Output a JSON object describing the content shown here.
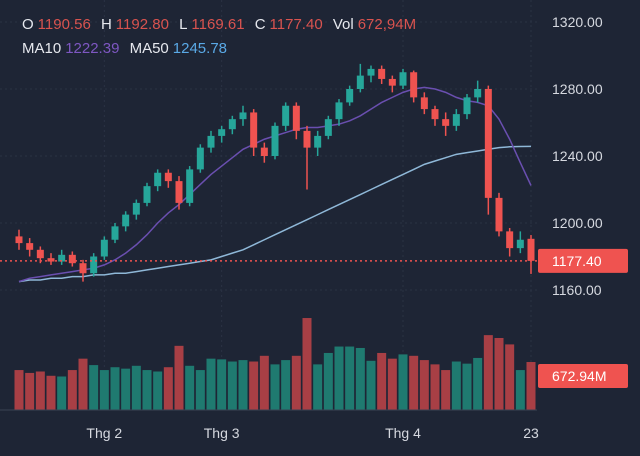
{
  "legend": {
    "o_label": "O",
    "o": "1190.56",
    "h_label": "H",
    "h": "1192.80",
    "l_label": "L",
    "l": "1169.61",
    "c_label": "C",
    "c": "1177.40",
    "vol_label": "Vol",
    "vol": "672,94M",
    "ma10_label": "MA10",
    "ma10": "1222.39",
    "ma50_label": "MA50",
    "ma50": "1245.78"
  },
  "colors": {
    "bg": "#1e2535",
    "up": "#26a69a",
    "down": "#ef5350",
    "vol_up": "#1f7a70",
    "vol_down": "#a83f45",
    "ma10": "#6a4fb0",
    "ma50": "#8fb8d8"
  },
  "chart_data": {
    "type": "candlestick",
    "ylim": [
      1150,
      1320
    ],
    "y_ticks": [
      "1320.00",
      "1280.00",
      "1240.00",
      "1200.00",
      "1160.00"
    ],
    "y_tick_values": [
      1320,
      1280,
      1240,
      1200,
      1160
    ],
    "x_ticks": [
      {
        "label": "Thg 2",
        "index": 8
      },
      {
        "label": "Thg 3",
        "index": 19
      },
      {
        "label": "Thg 4",
        "index": 36
      },
      {
        "label": "23",
        "index": 48
      }
    ],
    "last_price_label": "1177.40",
    "last_price": 1177.4,
    "last_volume_label": "672.94M",
    "last_volume": 672.94,
    "candles": [
      [
        1192,
        1196,
        1184,
        1188,
        560
      ],
      [
        1188,
        1191,
        1180,
        1184,
        520
      ],
      [
        1184,
        1186,
        1176,
        1179,
        540
      ],
      [
        1179,
        1182,
        1175,
        1177,
        480
      ],
      [
        1177,
        1184,
        1175,
        1181,
        470
      ],
      [
        1181,
        1183,
        1174,
        1176,
        560
      ],
      [
        1176,
        1178,
        1165,
        1170,
        720
      ],
      [
        1170,
        1182,
        1168,
        1180,
        630
      ],
      [
        1180,
        1192,
        1178,
        1190,
        560
      ],
      [
        1190,
        1200,
        1188,
        1198,
        600
      ],
      [
        1198,
        1207,
        1195,
        1205,
        580
      ],
      [
        1205,
        1214,
        1202,
        1212,
        620
      ],
      [
        1212,
        1224,
        1210,
        1222,
        560
      ],
      [
        1222,
        1232,
        1219,
        1230,
        540
      ],
      [
        1230,
        1232,
        1221,
        1225,
        600
      ],
      [
        1225,
        1228,
        1208,
        1212,
        900
      ],
      [
        1212,
        1234,
        1210,
        1232,
        620
      ],
      [
        1232,
        1247,
        1230,
        1245,
        560
      ],
      [
        1245,
        1255,
        1242,
        1252,
        720
      ],
      [
        1252,
        1258,
        1248,
        1256,
        710
      ],
      [
        1256,
        1264,
        1253,
        1262,
        680
      ],
      [
        1262,
        1270,
        1258,
        1266,
        700
      ],
      [
        1266,
        1268,
        1240,
        1245,
        680
      ],
      [
        1245,
        1248,
        1236,
        1240,
        760
      ],
      [
        1240,
        1260,
        1238,
        1258,
        640
      ],
      [
        1258,
        1272,
        1255,
        1270,
        700
      ],
      [
        1270,
        1272,
        1250,
        1255,
        760
      ],
      [
        1255,
        1258,
        1220,
        1245,
        1290
      ],
      [
        1245,
        1255,
        1240,
        1252,
        640
      ],
      [
        1252,
        1264,
        1250,
        1262,
        800
      ],
      [
        1262,
        1274,
        1258,
        1272,
        890
      ],
      [
        1272,
        1282,
        1270,
        1280,
        890
      ],
      [
        1280,
        1295,
        1278,
        1288,
        870
      ],
      [
        1288,
        1294,
        1284,
        1292,
        690
      ],
      [
        1292,
        1294,
        1283,
        1286,
        800
      ],
      [
        1286,
        1288,
        1278,
        1282,
        720
      ],
      [
        1282,
        1292,
        1280,
        1290,
        780
      ],
      [
        1290,
        1291,
        1272,
        1275,
        760
      ],
      [
        1275,
        1278,
        1265,
        1268,
        700
      ],
      [
        1268,
        1270,
        1258,
        1262,
        640
      ],
      [
        1262,
        1266,
        1252,
        1258,
        560
      ],
      [
        1258,
        1268,
        1255,
        1265,
        680
      ],
      [
        1265,
        1277,
        1262,
        1275,
        650
      ],
      [
        1275,
        1285,
        1272,
        1280,
        730
      ],
      [
        1280,
        1282,
        1205,
        1215,
        1050
      ],
      [
        1215,
        1218,
        1192,
        1195,
        1010
      ],
      [
        1195,
        1197,
        1180,
        1185,
        920
      ],
      [
        1185,
        1195,
        1182,
        1190,
        560
      ],
      [
        1190.56,
        1192.8,
        1169.61,
        1177.4,
        672.94
      ]
    ],
    "ma10": [
      1165,
      1167,
      1168,
      1169,
      1170,
      1171,
      1172,
      1173,
      1175,
      1178,
      1182,
      1187,
      1193,
      1200,
      1206,
      1211,
      1217,
      1223,
      1229,
      1234,
      1239,
      1244,
      1247,
      1250,
      1252,
      1254,
      1256,
      1257,
      1257,
      1258,
      1259,
      1261,
      1264,
      1268,
      1272,
      1275,
      1278,
      1280,
      1281,
      1280,
      1278,
      1275,
      1273,
      1272,
      1270,
      1262,
      1250,
      1236,
      1222.39
    ],
    "ma50": [
      1165,
      1166,
      1166,
      1167,
      1167,
      1168,
      1168,
      1169,
      1169,
      1170,
      1170,
      1171,
      1172,
      1173,
      1174,
      1175,
      1176,
      1177,
      1178,
      1180,
      1182,
      1184,
      1187,
      1190,
      1193,
      1196,
      1199,
      1202,
      1205,
      1208,
      1211,
      1214,
      1217,
      1220,
      1223,
      1226,
      1229,
      1232,
      1235,
      1237,
      1239,
      1241,
      1242,
      1243,
      1244,
      1245,
      1245.5,
      1245.7,
      1245.78
    ]
  }
}
